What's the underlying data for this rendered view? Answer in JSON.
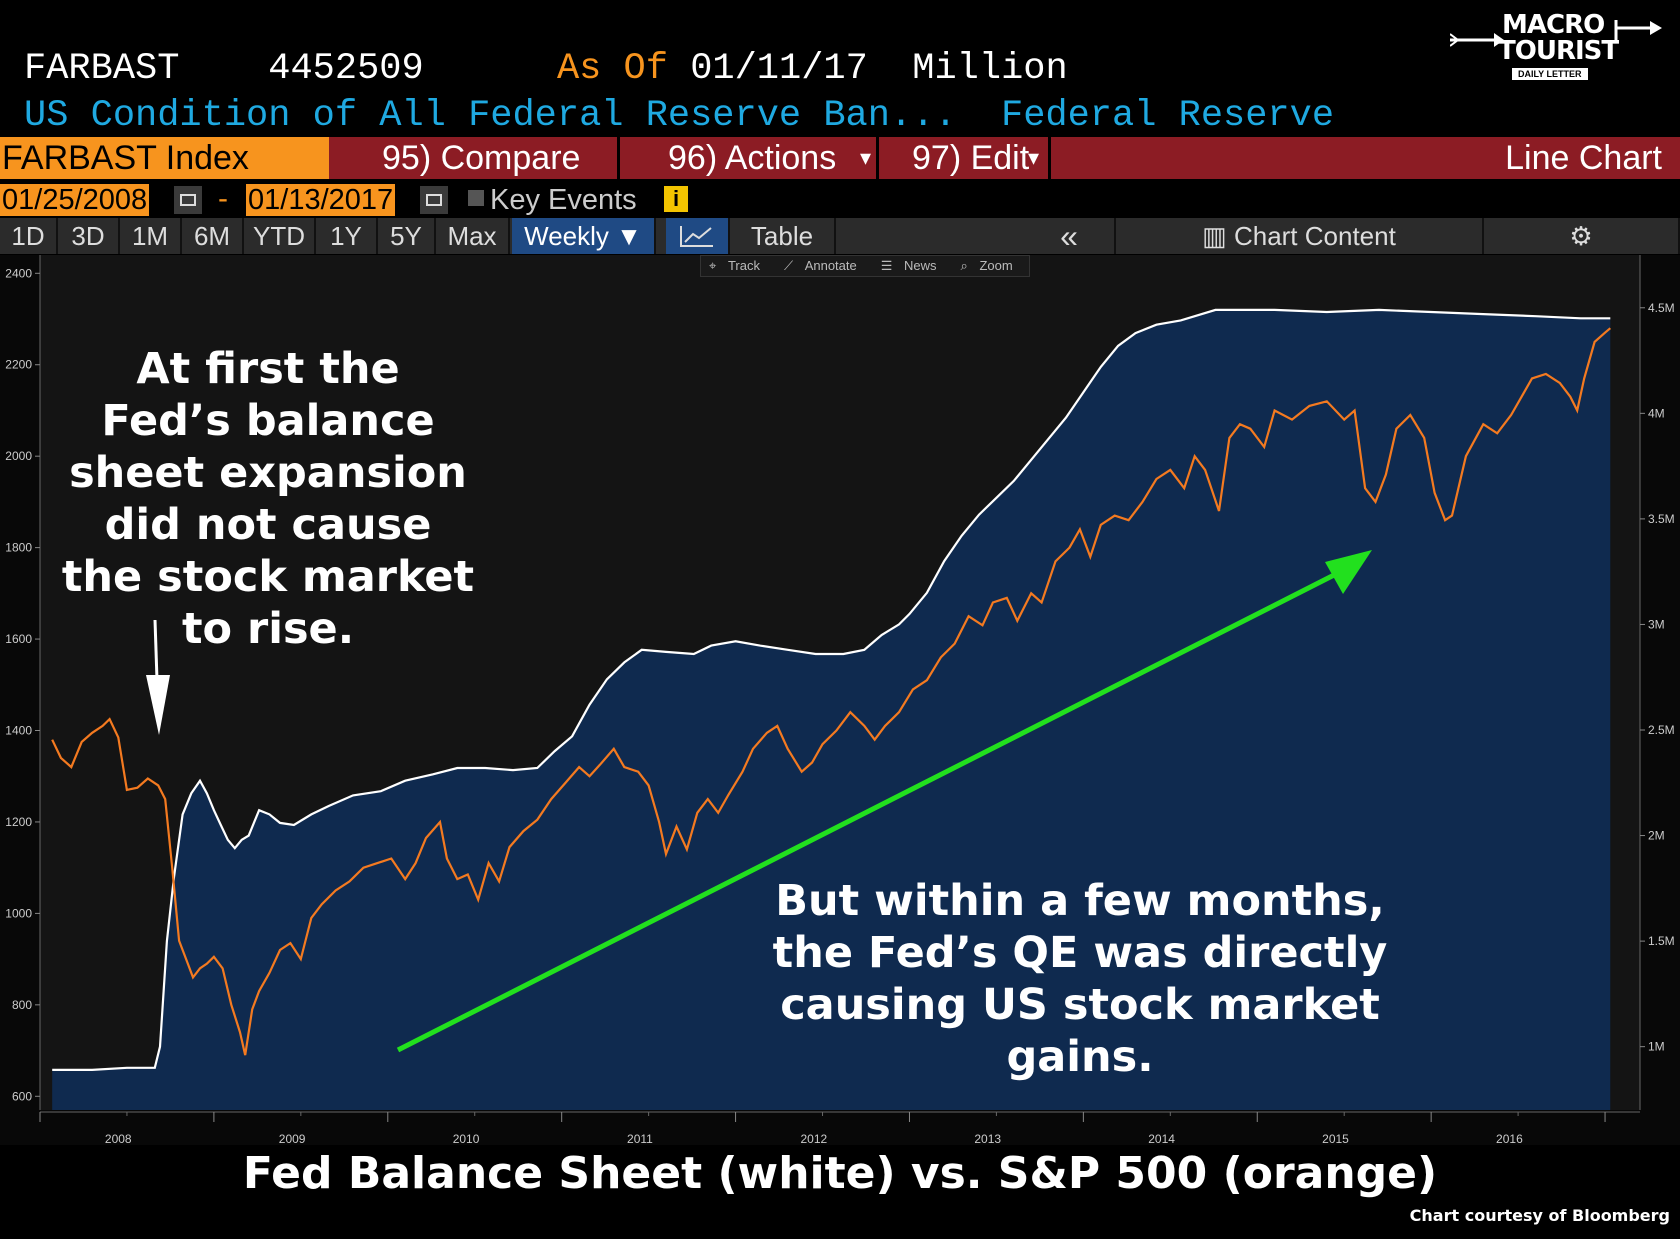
{
  "header": {
    "ticker": "FARBAST",
    "value": "4452509",
    "as_of_label": "As Of",
    "as_of_date": "01/11/17",
    "unit": "Million",
    "description": "US Condition of All Federal Reserve Ban...",
    "source": "Federal Reserve"
  },
  "logo": {
    "line1": "MACRO",
    "line2": "TOURIST",
    "line3": "DAILY LETTER"
  },
  "toolbar": {
    "index_label": "FARBAST Index",
    "compare_label": "95) Compare",
    "actions_label": "96) Actions",
    "edit_label": "97) Edit",
    "chart_type_label": "Line Chart"
  },
  "date_range": {
    "start": "01/25/2008",
    "dash": "-",
    "end": "01/13/2017",
    "key_events_label": "Key Events",
    "info": "i"
  },
  "periods": [
    "1D",
    "3D",
    "1M",
    "6M",
    "YTD",
    "1Y",
    "5Y",
    "Max"
  ],
  "frequency": "Weekly ▼",
  "table_label": "Table",
  "collapse_label": "«",
  "chart_content_label": "Chart Content",
  "mini_toolbar": [
    "Track",
    "Annotate",
    "News",
    "Zoom"
  ],
  "colors": {
    "sp500": "#f47a20",
    "fed": "#ffffff",
    "area": "#0f2a4f",
    "arrow": "#22e01e",
    "accent": "#f7941e",
    "toolbar_red": "#8c1c24",
    "header_blue": "#1fa9e1"
  },
  "annotations": {
    "left": [
      "At first the",
      "Fed’s balance",
      "sheet expansion",
      "did not cause",
      "the stock market",
      "to rise."
    ],
    "right": [
      "But within a few months,",
      "the Fed’s QE was directly",
      "causing US stock market",
      "gains."
    ]
  },
  "caption": "Fed Balance Sheet (white) vs. S&P 500 (orange)",
  "credit": "Chart courtesy of Bloomberg",
  "chart_data": {
    "type": "line",
    "x_axis": {
      "ticks": [
        "2008",
        "2009",
        "2010",
        "2011",
        "2012",
        "2013",
        "2014",
        "2015",
        "2016"
      ],
      "range": [
        2008.0,
        2017.04
      ]
    },
    "y_left": {
      "ticks": [
        600,
        800,
        1000,
        1200,
        1400,
        1600,
        1800,
        2000,
        2200,
        2400
      ],
      "range": [
        570,
        2440
      ]
    },
    "y_right": {
      "ticks": [
        "1M",
        "1.5M",
        "2M",
        "2.5M",
        "3M",
        "3.5M",
        "4M",
        "4.5M"
      ],
      "values": [
        1.0,
        1.5,
        2.0,
        2.5,
        3.0,
        3.5,
        4.0,
        4.5
      ],
      "range": [
        0.7,
        4.75
      ]
    },
    "grid": false,
    "series": [
      {
        "axis": "left",
        "points": [
          [
            2008.07,
            1380
          ],
          [
            2008.12,
            1340
          ],
          [
            2008.18,
            1320
          ],
          [
            2008.24,
            1375
          ],
          [
            2008.3,
            1395
          ],
          [
            2008.36,
            1410
          ],
          [
            2008.4,
            1425
          ],
          [
            2008.45,
            1385
          ],
          [
            2008.5,
            1270
          ],
          [
            2008.56,
            1275
          ],
          [
            2008.62,
            1295
          ],
          [
            2008.68,
            1280
          ],
          [
            2008.72,
            1250
          ],
          [
            2008.76,
            1100
          ],
          [
            2008.8,
            940
          ],
          [
            2008.84,
            900
          ],
          [
            2008.88,
            860
          ],
          [
            2008.92,
            880
          ],
          [
            2008.96,
            890
          ],
          [
            2009.0,
            905
          ],
          [
            2009.05,
            880
          ],
          [
            2009.1,
            800
          ],
          [
            2009.15,
            740
          ],
          [
            2009.18,
            690
          ],
          [
            2009.22,
            790
          ],
          [
            2009.26,
            830
          ],
          [
            2009.32,
            870
          ],
          [
            2009.38,
            920
          ],
          [
            2009.44,
            935
          ],
          [
            2009.5,
            900
          ],
          [
            2009.56,
            990
          ],
          [
            2009.62,
            1020
          ],
          [
            2009.7,
            1050
          ],
          [
            2009.78,
            1070
          ],
          [
            2009.86,
            1100
          ],
          [
            2009.94,
            1110
          ],
          [
            2010.02,
            1120
          ],
          [
            2010.1,
            1075
          ],
          [
            2010.16,
            1110
          ],
          [
            2010.22,
            1165
          ],
          [
            2010.3,
            1200
          ],
          [
            2010.34,
            1120
          ],
          [
            2010.4,
            1075
          ],
          [
            2010.46,
            1085
          ],
          [
            2010.52,
            1030
          ],
          [
            2010.58,
            1110
          ],
          [
            2010.64,
            1070
          ],
          [
            2010.7,
            1145
          ],
          [
            2010.78,
            1180
          ],
          [
            2010.86,
            1205
          ],
          [
            2010.94,
            1250
          ],
          [
            2011.02,
            1285
          ],
          [
            2011.1,
            1320
          ],
          [
            2011.16,
            1300
          ],
          [
            2011.22,
            1325
          ],
          [
            2011.3,
            1360
          ],
          [
            2011.36,
            1320
          ],
          [
            2011.44,
            1310
          ],
          [
            2011.5,
            1280
          ],
          [
            2011.56,
            1200
          ],
          [
            2011.6,
            1130
          ],
          [
            2011.66,
            1190
          ],
          [
            2011.72,
            1140
          ],
          [
            2011.78,
            1220
          ],
          [
            2011.84,
            1250
          ],
          [
            2011.9,
            1220
          ],
          [
            2011.96,
            1260
          ],
          [
            2012.04,
            1310
          ],
          [
            2012.1,
            1360
          ],
          [
            2012.18,
            1395
          ],
          [
            2012.24,
            1410
          ],
          [
            2012.3,
            1360
          ],
          [
            2012.38,
            1310
          ],
          [
            2012.44,
            1330
          ],
          [
            2012.5,
            1370
          ],
          [
            2012.58,
            1400
          ],
          [
            2012.66,
            1440
          ],
          [
            2012.74,
            1410
          ],
          [
            2012.8,
            1380
          ],
          [
            2012.86,
            1410
          ],
          [
            2012.94,
            1440
          ],
          [
            2013.02,
            1490
          ],
          [
            2013.1,
            1510
          ],
          [
            2013.18,
            1560
          ],
          [
            2013.26,
            1590
          ],
          [
            2013.34,
            1650
          ],
          [
            2013.42,
            1630
          ],
          [
            2013.48,
            1680
          ],
          [
            2013.56,
            1690
          ],
          [
            2013.62,
            1640
          ],
          [
            2013.7,
            1700
          ],
          [
            2013.76,
            1680
          ],
          [
            2013.84,
            1770
          ],
          [
            2013.92,
            1800
          ],
          [
            2013.98,
            1840
          ],
          [
            2014.04,
            1780
          ],
          [
            2014.1,
            1850
          ],
          [
            2014.18,
            1870
          ],
          [
            2014.26,
            1860
          ],
          [
            2014.34,
            1900
          ],
          [
            2014.42,
            1950
          ],
          [
            2014.5,
            1970
          ],
          [
            2014.58,
            1930
          ],
          [
            2014.64,
            2000
          ],
          [
            2014.7,
            1970
          ],
          [
            2014.78,
            1880
          ],
          [
            2014.84,
            2040
          ],
          [
            2014.9,
            2070
          ],
          [
            2014.96,
            2060
          ],
          [
            2015.04,
            2020
          ],
          [
            2015.1,
            2100
          ],
          [
            2015.2,
            2080
          ],
          [
            2015.3,
            2110
          ],
          [
            2015.4,
            2120
          ],
          [
            2015.5,
            2080
          ],
          [
            2015.56,
            2100
          ],
          [
            2015.62,
            1930
          ],
          [
            2015.68,
            1900
          ],
          [
            2015.74,
            1960
          ],
          [
            2015.8,
            2060
          ],
          [
            2015.88,
            2090
          ],
          [
            2015.96,
            2040
          ],
          [
            2016.02,
            1920
          ],
          [
            2016.08,
            1860
          ],
          [
            2016.12,
            1870
          ],
          [
            2016.2,
            2000
          ],
          [
            2016.3,
            2070
          ],
          [
            2016.38,
            2050
          ],
          [
            2016.46,
            2090
          ],
          [
            2016.52,
            2130
          ],
          [
            2016.58,
            2170
          ],
          [
            2016.66,
            2180
          ],
          [
            2016.74,
            2160
          ],
          [
            2016.8,
            2130
          ],
          [
            2016.84,
            2100
          ],
          [
            2016.88,
            2170
          ],
          [
            2016.94,
            2250
          ],
          [
            2017.0,
            2270
          ],
          [
            2017.03,
            2280
          ]
        ]
      },
      {
        "axis": "right",
        "points": [
          [
            2008.07,
            0.89
          ],
          [
            2008.3,
            0.89
          ],
          [
            2008.5,
            0.9
          ],
          [
            2008.66,
            0.9
          ],
          [
            2008.69,
            1.0
          ],
          [
            2008.73,
            1.5
          ],
          [
            2008.77,
            1.8
          ],
          [
            2008.82,
            2.1
          ],
          [
            2008.87,
            2.2
          ],
          [
            2008.92,
            2.26
          ],
          [
            2008.96,
            2.2
          ],
          [
            2009.0,
            2.12
          ],
          [
            2009.04,
            2.05
          ],
          [
            2009.08,
            1.98
          ],
          [
            2009.12,
            1.94
          ],
          [
            2009.16,
            1.98
          ],
          [
            2009.2,
            2.0
          ],
          [
            2009.26,
            2.12
          ],
          [
            2009.32,
            2.1
          ],
          [
            2009.38,
            2.06
          ],
          [
            2009.46,
            2.05
          ],
          [
            2009.56,
            2.1
          ],
          [
            2009.66,
            2.14
          ],
          [
            2009.8,
            2.19
          ],
          [
            2009.96,
            2.21
          ],
          [
            2010.1,
            2.26
          ],
          [
            2010.26,
            2.29
          ],
          [
            2010.4,
            2.32
          ],
          [
            2010.56,
            2.32
          ],
          [
            2010.72,
            2.31
          ],
          [
            2010.86,
            2.32
          ],
          [
            2010.96,
            2.4
          ],
          [
            2011.06,
            2.47
          ],
          [
            2011.16,
            2.62
          ],
          [
            2011.26,
            2.74
          ],
          [
            2011.36,
            2.82
          ],
          [
            2011.46,
            2.88
          ],
          [
            2011.6,
            2.87
          ],
          [
            2011.76,
            2.86
          ],
          [
            2011.86,
            2.9
          ],
          [
            2012.0,
            2.92
          ],
          [
            2012.14,
            2.9
          ],
          [
            2012.3,
            2.88
          ],
          [
            2012.46,
            2.86
          ],
          [
            2012.62,
            2.86
          ],
          [
            2012.74,
            2.88
          ],
          [
            2012.84,
            2.95
          ],
          [
            2012.94,
            3.0
          ],
          [
            2013.0,
            3.05
          ],
          [
            2013.1,
            3.15
          ],
          [
            2013.2,
            3.3
          ],
          [
            2013.3,
            3.42
          ],
          [
            2013.4,
            3.52
          ],
          [
            2013.5,
            3.6
          ],
          [
            2013.6,
            3.68
          ],
          [
            2013.7,
            3.78
          ],
          [
            2013.8,
            3.88
          ],
          [
            2013.9,
            3.98
          ],
          [
            2014.0,
            4.1
          ],
          [
            2014.1,
            4.22
          ],
          [
            2014.2,
            4.32
          ],
          [
            2014.3,
            4.38
          ],
          [
            2014.42,
            4.42
          ],
          [
            2014.56,
            4.44
          ],
          [
            2014.76,
            4.49
          ],
          [
            2014.9,
            4.49
          ],
          [
            2015.1,
            4.49
          ],
          [
            2015.4,
            4.48
          ],
          [
            2015.7,
            4.49
          ],
          [
            2016.0,
            4.48
          ],
          [
            2016.3,
            4.47
          ],
          [
            2016.6,
            4.46
          ],
          [
            2016.86,
            4.45
          ],
          [
            2017.03,
            4.45
          ]
        ]
      }
    ]
  }
}
